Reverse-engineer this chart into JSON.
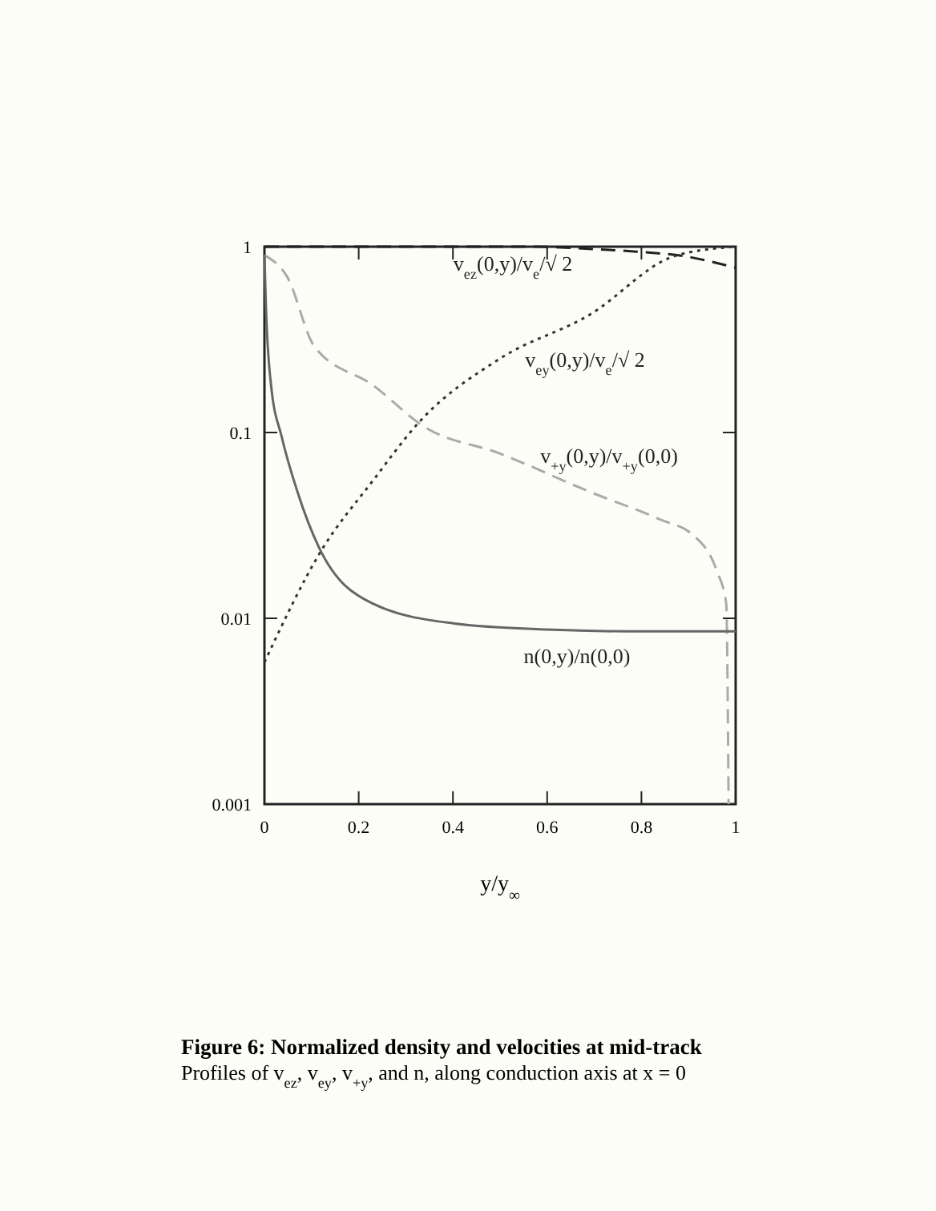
{
  "chart_data": {
    "type": "line",
    "title": "Figure 6: Normalized density and velocities at mid-track",
    "subtitle": "Profiles of v$_{ez}$, v$_{ey}$, v$_{+y}$, and n, along conduction axis at x = 0",
    "xlabel": "y/y$_{∞}$",
    "log": true,
    "grid": false,
    "xlim": [
      0,
      1
    ],
    "xticks": [
      0,
      0.2,
      0.4,
      0.6,
      0.8,
      1
    ],
    "ylim": [
      0.001,
      1
    ],
    "yticks": [
      0.001,
      0.01,
      0.1,
      1
    ],
    "series": [
      {
        "name": "v$_{ez}$(0,y)/v$_{e}$/√ 2",
        "color": "#222222",
        "line_style": "dashed",
        "x": [
          0,
          0.2,
          0.4,
          0.57,
          0.7,
          0.79,
          0.89,
          1.0
        ],
        "values": [
          1.0,
          1.0,
          1.0,
          1.0,
          0.97,
          0.94,
          0.89,
          0.77
        ]
      },
      {
        "name": "v$_{ey}$(0,y)/v$_{e}$/√ 2",
        "color": "#333333",
        "line_style": "dotted",
        "x": [
          0,
          0.12,
          0.23,
          0.33,
          0.5,
          0.69,
          0.87,
          1.0
        ],
        "values": [
          0.0058,
          0.023,
          0.055,
          0.115,
          0.25,
          0.43,
          0.89,
          1.0
        ]
      },
      {
        "name": "v$_{+y}$(0,y)/v$_{+y}$(0,0)",
        "color": "#aaaaaa",
        "line_style": "dashed",
        "x": [
          0,
          0.048,
          0.106,
          0.23,
          0.34,
          0.5,
          0.69,
          0.84,
          0.91,
          0.96,
          0.98,
          0.985
        ],
        "values": [
          0.9,
          0.69,
          0.29,
          0.18,
          0.107,
          0.077,
          0.048,
          0.034,
          0.028,
          0.018,
          0.012,
          0.001
        ]
      },
      {
        "name": "n(0,y)/n(0,0)",
        "color": "#666666",
        "line_style": "solid",
        "x": [
          0,
          0.003,
          0.014,
          0.037,
          0.07,
          0.116,
          0.23,
          0.4,
          0.6,
          0.8,
          1.0
        ],
        "values": [
          0.9,
          0.49,
          0.18,
          0.094,
          0.048,
          0.024,
          0.012,
          0.0094,
          0.0087,
          0.0085,
          0.0085
        ]
      }
    ]
  }
}
